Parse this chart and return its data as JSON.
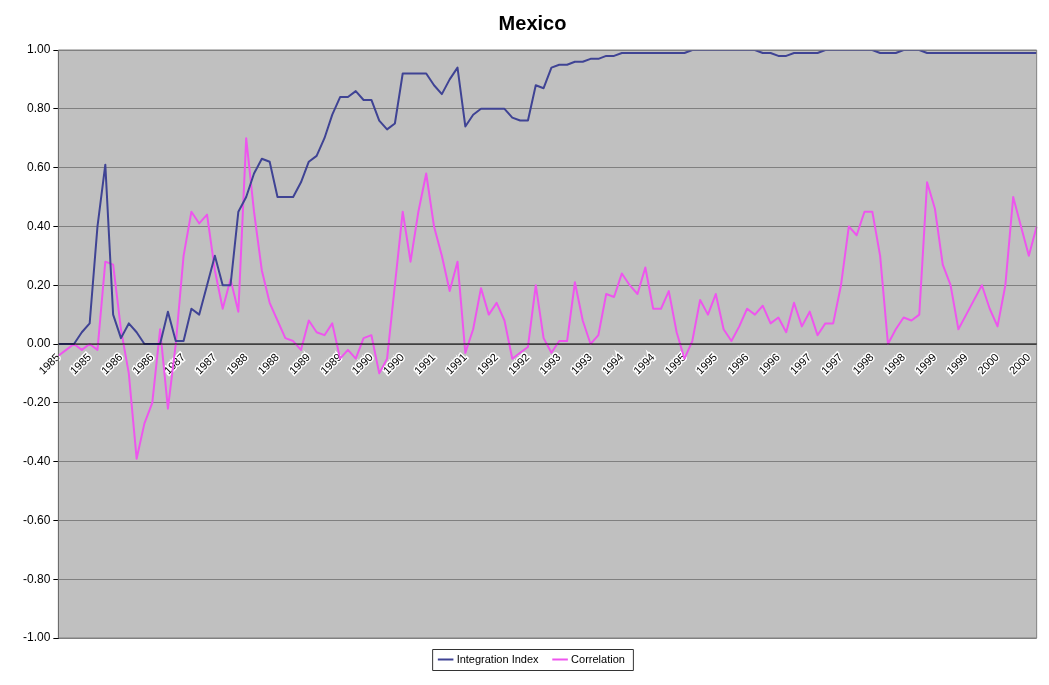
{
  "chart_data": {
    "type": "line",
    "title": "Mexico",
    "categories": [
      "1985",
      null,
      null,
      null,
      "1985",
      null,
      null,
      null,
      "1986",
      null,
      null,
      null,
      "1986",
      null,
      null,
      null,
      "1987",
      null,
      null,
      null,
      "1987",
      null,
      null,
      null,
      "1988",
      null,
      null,
      null,
      "1988",
      null,
      null,
      null,
      "1989",
      null,
      null,
      null,
      "1989",
      null,
      null,
      null,
      "1990",
      null,
      null,
      null,
      "1990",
      null,
      null,
      null,
      "1991",
      null,
      null,
      null,
      "1991",
      null,
      null,
      null,
      "1992",
      null,
      null,
      null,
      "1992",
      null,
      null,
      null,
      "1993",
      null,
      null,
      null,
      "1993",
      null,
      null,
      null,
      "1994",
      null,
      null,
      null,
      "1994",
      null,
      null,
      null,
      "1995",
      null,
      null,
      null,
      "1995",
      null,
      null,
      null,
      "1996",
      null,
      null,
      null,
      "1996",
      null,
      null,
      null,
      "1997",
      null,
      null,
      null,
      "1997",
      null,
      null,
      null,
      "1998",
      null,
      null,
      null,
      "1998",
      null,
      null,
      null,
      "1999",
      null,
      null,
      null,
      "1999",
      null,
      null,
      null,
      "2000",
      null,
      null,
      null,
      "2000",
      null
    ],
    "series": [
      {
        "name": "Integration Index",
        "color": "#3f4394",
        "values": [
          0,
          0,
          0,
          0.04,
          0.07,
          0.4,
          0.61,
          0.1,
          0.02,
          0.07,
          0.04,
          0,
          0,
          0,
          0.11,
          0.01,
          0.01,
          0.12,
          0.1,
          0.2,
          0.3,
          0.2,
          0.2,
          0.45,
          0.5,
          0.58,
          0.63,
          0.62,
          0.5,
          0.5,
          0.5,
          0.55,
          0.62,
          0.64,
          0.7,
          0.78,
          0.84,
          0.84,
          0.86,
          0.83,
          0.83,
          0.76,
          0.73,
          0.75,
          0.92,
          0.92,
          0.92,
          0.92,
          0.88,
          0.85,
          0.9,
          0.94,
          0.74,
          0.78,
          0.8,
          0.8,
          0.8,
          0.8,
          0.77,
          0.76,
          0.76,
          0.88,
          0.87,
          0.94,
          0.95,
          0.95,
          0.96,
          0.96,
          0.97,
          0.97,
          0.98,
          0.98,
          0.99,
          0.99,
          0.99,
          0.99,
          0.99,
          0.99,
          0.99,
          0.99,
          0.99,
          1,
          1,
          1,
          1,
          1,
          1,
          1,
          1,
          1,
          0.99,
          0.99,
          0.98,
          0.98,
          0.99,
          0.99,
          0.99,
          0.99,
          1,
          1,
          1,
          1,
          1,
          1,
          1,
          0.99,
          0.99,
          0.99,
          1,
          1,
          1,
          0.99,
          0.99,
          0.99,
          0.99,
          0.99,
          0.99,
          0.99,
          0.99,
          0.99,
          0.99,
          0.99,
          0.99,
          0.99,
          0.99,
          0.99
        ]
      },
      {
        "name": "Correlation",
        "color": "#ee55ee",
        "values": [
          -0.04,
          -0.02,
          0,
          -0.02,
          0,
          -0.02,
          0.28,
          0.27,
          0.05,
          -0.1,
          -0.39,
          -0.27,
          -0.2,
          0.05,
          -0.22,
          0,
          0.3,
          0.45,
          0.41,
          0.44,
          0.25,
          0.12,
          0.22,
          0.11,
          0.7,
          0.45,
          0.25,
          0.14,
          0.08,
          0.02,
          0.01,
          -0.02,
          0.08,
          0.04,
          0.03,
          0.07,
          -0.05,
          -0.02,
          -0.05,
          0.02,
          0.03,
          -0.1,
          -0.05,
          0.2,
          0.45,
          0.28,
          0.45,
          0.58,
          0.4,
          0.3,
          0.18,
          0.28,
          -0.03,
          0.05,
          0.19,
          0.1,
          0.14,
          0.08,
          -0.05,
          -0.03,
          -0.01,
          0.2,
          0.02,
          -0.03,
          0.01,
          0.01,
          0.21,
          0.08,
          0,
          0.03,
          0.17,
          0.16,
          0.24,
          0.2,
          0.17,
          0.26,
          0.12,
          0.12,
          0.18,
          0.04,
          -0.05,
          0.01,
          0.15,
          0.1,
          0.17,
          0.05,
          0.01,
          0.06,
          0.12,
          0.1,
          0.13,
          0.07,
          0.09,
          0.04,
          0.14,
          0.06,
          0.11,
          0.03,
          0.07,
          0.07,
          0.2,
          0.4,
          0.37,
          0.45,
          0.45,
          0.3,
          0,
          0.05,
          0.09,
          0.08,
          0.1,
          0.55,
          0.46,
          0.27,
          0.2,
          0.05,
          0.1,
          0.15,
          0.2,
          0.12,
          0.06,
          0.2,
          0.5,
          0.4,
          0.3,
          0.4
        ]
      }
    ],
    "ylim": [
      -1,
      1
    ],
    "yticks": [
      {
        "value": -1,
        "label": "-1.00"
      },
      {
        "value": -0.8,
        "label": "-0.80"
      },
      {
        "value": -0.6,
        "label": "-0.60"
      },
      {
        "value": -0.4,
        "label": "-0.40"
      },
      {
        "value": -0.2,
        "label": "-0.20"
      },
      {
        "value": 0,
        "label": "0.00"
      },
      {
        "value": 0.2,
        "label": "0.20"
      },
      {
        "value": 0.4,
        "label": "0.40"
      },
      {
        "value": 0.6,
        "label": "0.60"
      },
      {
        "value": 0.8,
        "label": "0.80"
      },
      {
        "value": 1,
        "label": "1.00"
      }
    ],
    "grid": "y",
    "legend": "bottom",
    "marker": "none",
    "line_style": "solid"
  }
}
